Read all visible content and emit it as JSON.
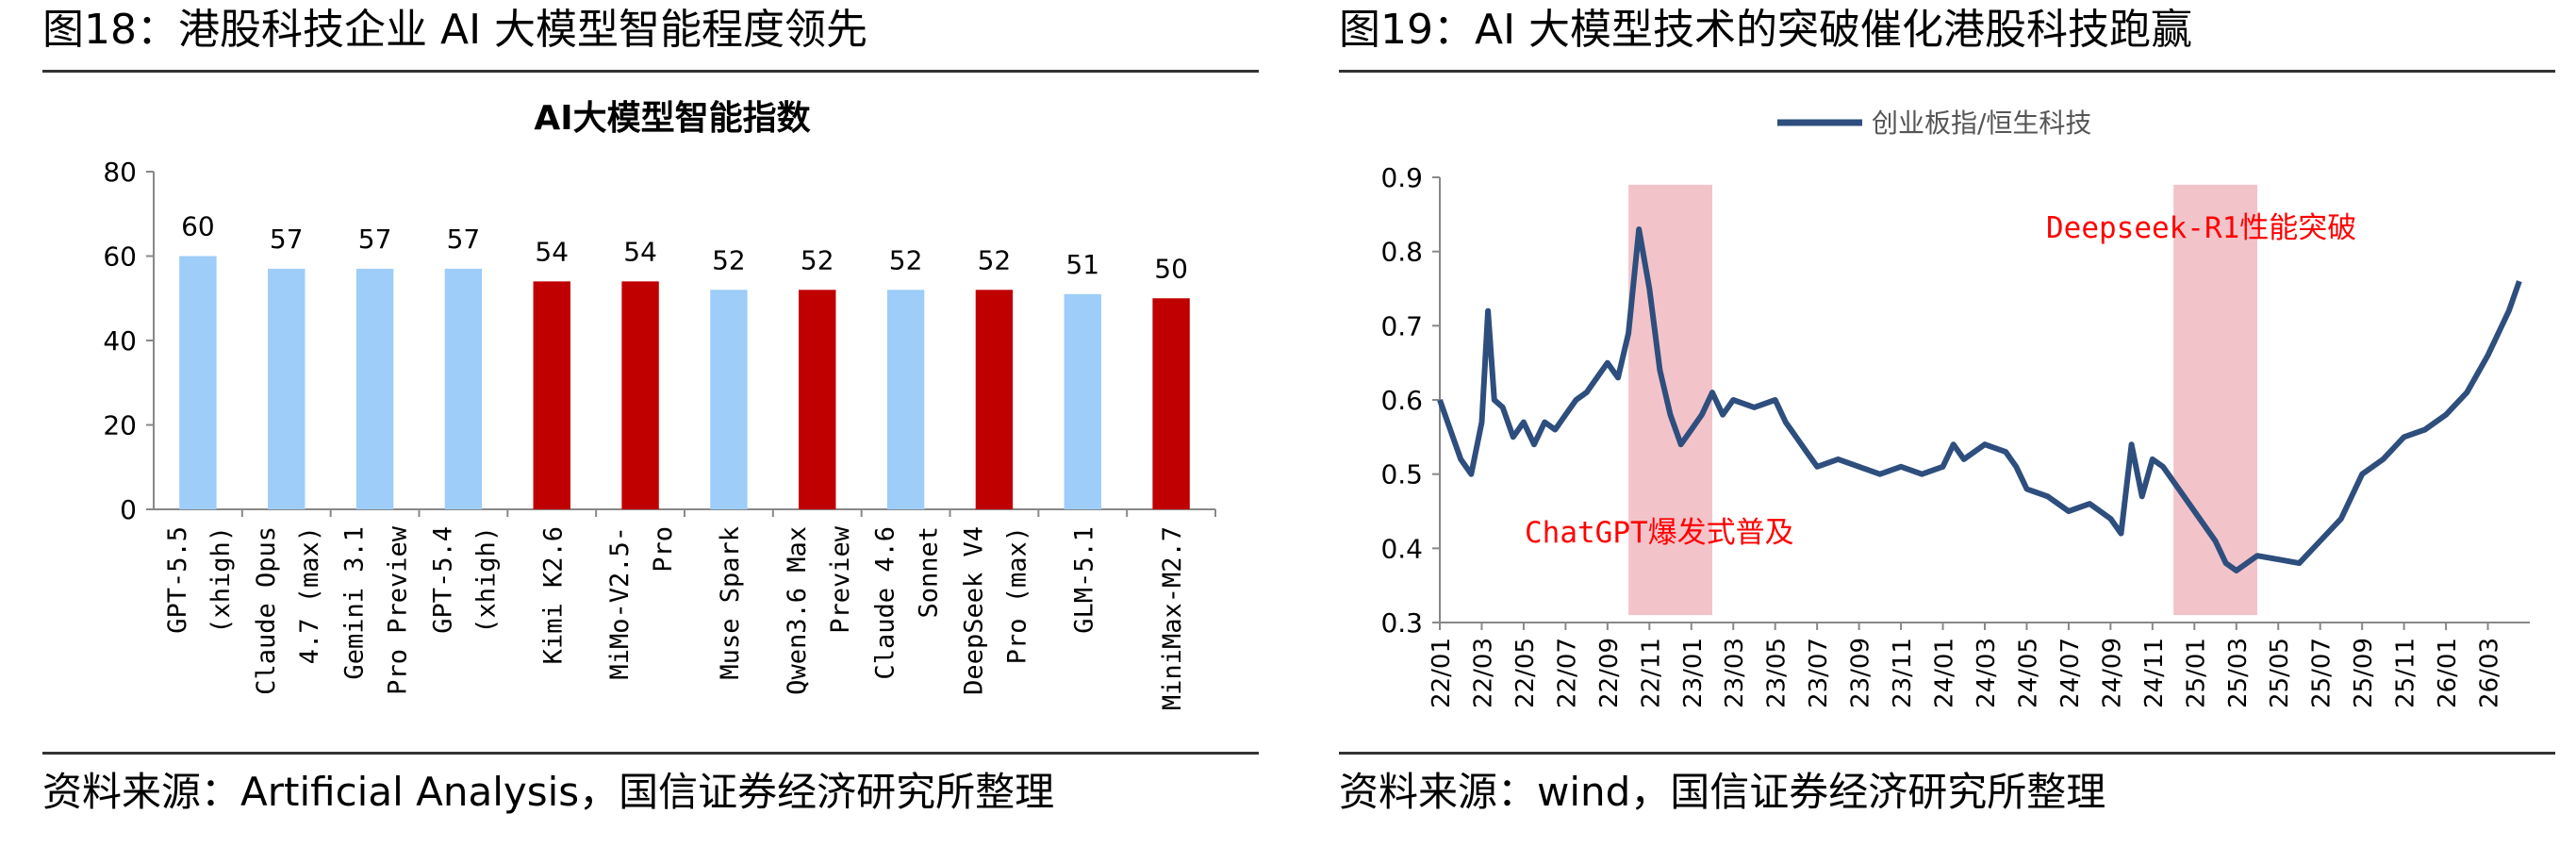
{
  "left": {
    "figure_title": "图18：港股科技企业 AI 大模型智能程度领先",
    "source": "资料来源：Artificial Analysis，国信证券经济研究所整理"
  },
  "right": {
    "figure_title": "图19：AI 大模型技术的突破催化港股科技跑赢",
    "source": "资料来源：wind，国信证券经济研究所整理"
  },
  "colors": {
    "light_blue": "#9DCDF8",
    "dark_red": "#C00000",
    "line": "#2E4E7E",
    "shade": "#F2C4CA",
    "annotation": "#FF0000"
  },
  "chart_data": [
    {
      "type": "bar",
      "title": "AI大模型智能指数",
      "ylim": [
        0,
        80
      ],
      "yticks": [
        "0",
        "20",
        "40",
        "60",
        "80"
      ],
      "categories": [
        [
          "GPT-5.5",
          "(xhigh)"
        ],
        [
          "Claude Opus",
          "4.7 (max)"
        ],
        [
          "Gemini 3.1",
          "Pro Preview"
        ],
        [
          "GPT-5.4",
          "(xhigh)"
        ],
        [
          "Kimi K2.6"
        ],
        [
          "MiMo-V2.5-",
          "Pro"
        ],
        [
          "Muse Spark"
        ],
        [
          "Qwen3.6 Max",
          "Preview"
        ],
        [
          "Claude 4.6",
          "Sonnet"
        ],
        [
          "DeepSeek V4",
          "Pro (max)"
        ],
        [
          "GLM-5.1"
        ],
        [
          "MiniMax-M2.7"
        ]
      ],
      "values": [
        60,
        57,
        57,
        57,
        54,
        54,
        52,
        52,
        52,
        52,
        51,
        50
      ],
      "bar_colors": [
        "light_blue",
        "light_blue",
        "light_blue",
        "light_blue",
        "dark_red",
        "dark_red",
        "light_blue",
        "dark_red",
        "light_blue",
        "dark_red",
        "light_blue",
        "dark_red"
      ],
      "grid": false,
      "data_labels": true
    },
    {
      "type": "line",
      "series": [
        {
          "name": "创业板指/恒生科技",
          "points": [
            [
              "22/01",
              0.6
            ],
            [
              "22/01.5",
              0.56
            ],
            [
              "22/02",
              0.52
            ],
            [
              "22/02.5",
              0.5
            ],
            [
              "22/03",
              0.57
            ],
            [
              "22/03.3",
              0.72
            ],
            [
              "22/03.6",
              0.6
            ],
            [
              "22/04",
              0.59
            ],
            [
              "22/04.5",
              0.55
            ],
            [
              "22/05",
              0.57
            ],
            [
              "22/05.5",
              0.54
            ],
            [
              "22/06",
              0.57
            ],
            [
              "22/06.5",
              0.56
            ],
            [
              "22/07",
              0.58
            ],
            [
              "22/07.5",
              0.6
            ],
            [
              "22/08",
              0.61
            ],
            [
              "22/08.5",
              0.63
            ],
            [
              "22/09",
              0.65
            ],
            [
              "22/09.5",
              0.63
            ],
            [
              "22/10",
              0.69
            ],
            [
              "22/10.5",
              0.83
            ],
            [
              "22/11",
              0.75
            ],
            [
              "22/11.5",
              0.64
            ],
            [
              "22/12",
              0.58
            ],
            [
              "22/12.5",
              0.54
            ],
            [
              "23/01",
              0.56
            ],
            [
              "23/01.5",
              0.58
            ],
            [
              "23/02",
              0.61
            ],
            [
              "23/02.5",
              0.58
            ],
            [
              "23/03",
              0.6
            ],
            [
              "23/04",
              0.59
            ],
            [
              "23/05",
              0.6
            ],
            [
              "23/05.5",
              0.57
            ],
            [
              "23/06",
              0.55
            ],
            [
              "23/06.5",
              0.53
            ],
            [
              "23/07",
              0.51
            ],
            [
              "23/08",
              0.52
            ],
            [
              "23/09",
              0.51
            ],
            [
              "23/10",
              0.5
            ],
            [
              "23/11",
              0.51
            ],
            [
              "23/12",
              0.5
            ],
            [
              "24/01",
              0.51
            ],
            [
              "24/01.5",
              0.54
            ],
            [
              "24/02",
              0.52
            ],
            [
              "24/03",
              0.54
            ],
            [
              "24/04",
              0.53
            ],
            [
              "24/04.5",
              0.51
            ],
            [
              "24/05",
              0.48
            ],
            [
              "24/06",
              0.47
            ],
            [
              "24/07",
              0.45
            ],
            [
              "24/08",
              0.46
            ],
            [
              "24/09",
              0.44
            ],
            [
              "24/09.5",
              0.42
            ],
            [
              "24/10",
              0.54
            ],
            [
              "24/10.5",
              0.47
            ],
            [
              "24/11",
              0.52
            ],
            [
              "24/11.5",
              0.51
            ],
            [
              "24/12",
              0.49
            ],
            [
              "25/01",
              0.45
            ],
            [
              "25/02",
              0.41
            ],
            [
              "25/02.5",
              0.38
            ],
            [
              "25/03",
              0.37
            ],
            [
              "25/04",
              0.39
            ],
            [
              "25/05",
              0.385
            ],
            [
              "25/06",
              0.38
            ],
            [
              "25/07",
              0.41
            ],
            [
              "25/08",
              0.44
            ],
            [
              "25/09",
              0.5
            ],
            [
              "25/10",
              0.52
            ],
            [
              "25/11",
              0.55
            ],
            [
              "25/12",
              0.56
            ],
            [
              "26/01",
              0.58
            ],
            [
              "26/02",
              0.61
            ],
            [
              "26/03",
              0.66
            ],
            [
              "26/04",
              0.72
            ],
            [
              "26/04.5",
              0.76
            ]
          ]
        }
      ],
      "ylim": [
        0.3,
        0.9
      ],
      "yticks": [
        "0.3",
        "0.4",
        "0.5",
        "0.6",
        "0.7",
        "0.8",
        "0.9"
      ],
      "xticks": [
        "22/01",
        "22/03",
        "22/05",
        "22/07",
        "22/09",
        "22/11",
        "23/01",
        "23/03",
        "23/05",
        "23/07",
        "23/09",
        "23/11",
        "24/01",
        "24/03",
        "24/05",
        "24/07",
        "24/09",
        "24/11",
        "25/01",
        "25/03",
        "25/05",
        "25/07",
        "25/09",
        "25/11",
        "26/01",
        "26/03"
      ],
      "shaded_periods": [
        {
          "start": "22/10",
          "end": "23/02",
          "label": "ChatGPT爆发式普及"
        },
        {
          "start": "24/12",
          "end": "25/04",
          "label": "Deepseek-R1性能突破"
        }
      ],
      "legend_position": "top-center",
      "grid": false
    }
  ]
}
